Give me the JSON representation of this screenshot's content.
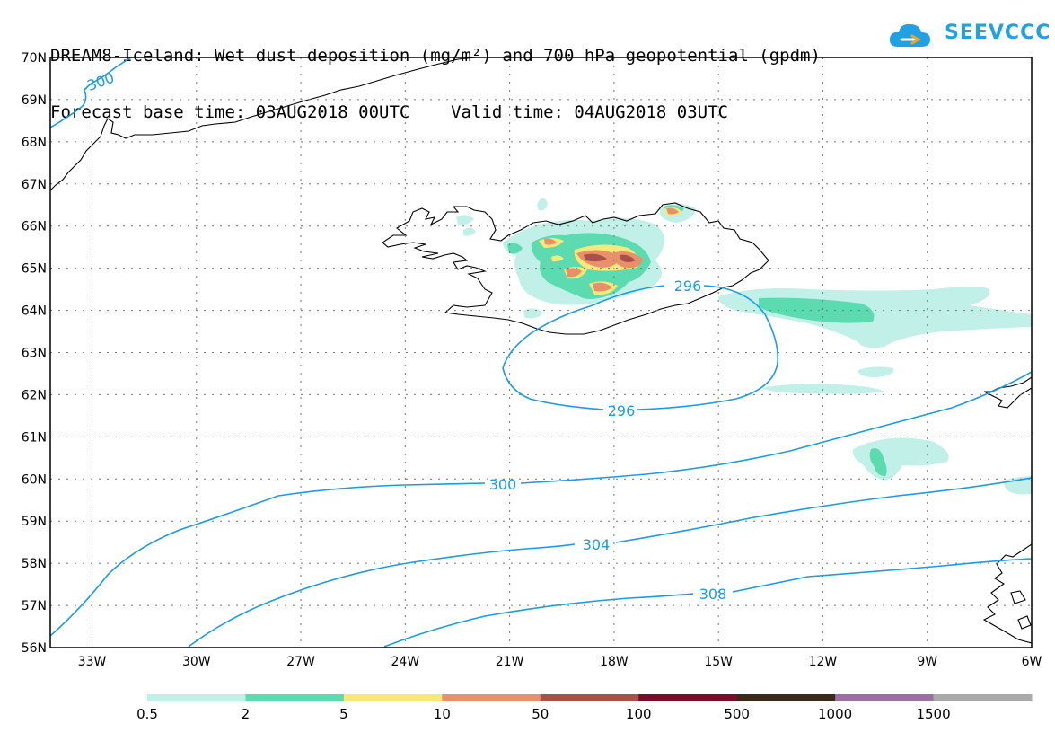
{
  "title": {
    "line1": "DREAM8-Iceland: Wet dust deposition (mg/m²) and 700 hPa geopotential (gpdm)",
    "line2": "Forecast base time: 03AUG2018 00UTC    Valid time: 04AUG2018 03UTC"
  },
  "logo": {
    "text": "SEEVCCC",
    "color": "#1ea2e3"
  },
  "map": {
    "lon_range": [
      -34.2,
      -6
    ],
    "lat_range": [
      56,
      70
    ],
    "lat_ticks": [
      "56N",
      "57N",
      "58N",
      "59N",
      "60N",
      "61N",
      "62N",
      "63N",
      "64N",
      "65N",
      "66N",
      "67N",
      "68N",
      "69N",
      "70N"
    ],
    "lon_ticks": [
      "33W",
      "30W",
      "27W",
      "24W",
      "21W",
      "18W",
      "15W",
      "12W",
      "9W",
      "6W"
    ],
    "contour_color": "#1a9be6",
    "contour_labels": [
      "300",
      "296",
      "296",
      "300",
      "304",
      "308"
    ],
    "grid": "dotted"
  },
  "legend": {
    "colors": [
      "#c0f0e8",
      "#5ddbb0",
      "#f8e878",
      "#e8906a",
      "#a8504a",
      "#7a0e2a",
      "#3a2a1a",
      "#9a70a0",
      "#aaaaaa"
    ],
    "labels": [
      "0.5",
      "2",
      "5",
      "10",
      "50",
      "100",
      "500",
      "1000",
      "1500"
    ]
  }
}
